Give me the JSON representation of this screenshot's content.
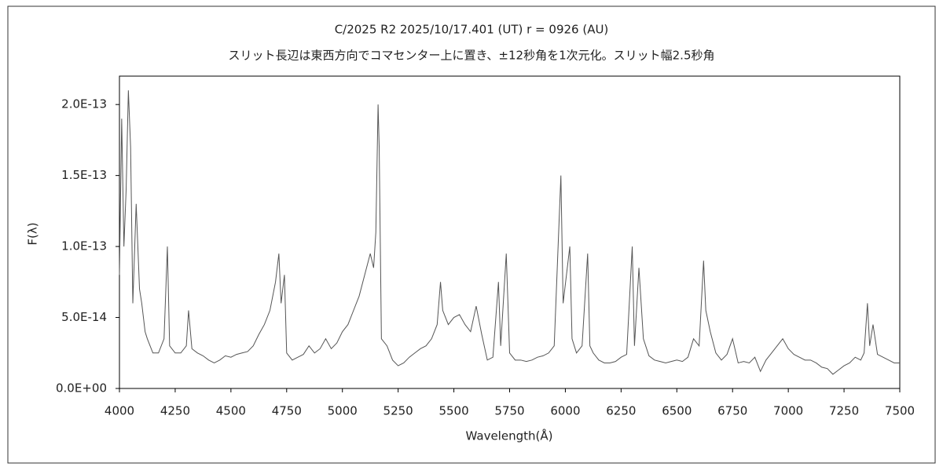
{
  "chart_data": {
    "type": "line",
    "title": "C/2025 R2    2025/10/17.401 (UT)    r = 0926 (AU)",
    "subtitle": "スリット長辺は東西方向でコマセンター上に置き、±12秒角を1次元化。スリット幅2.5秒角",
    "x_label": "Wavelength(Å)",
    "y_label": "F(λ)",
    "xlim": [
      4000,
      7500
    ],
    "ylim": [
      0,
      2.2e-13
    ],
    "xticks": [
      4000,
      4250,
      4500,
      4750,
      5000,
      5250,
      5500,
      5750,
      6000,
      6250,
      6500,
      6750,
      7000,
      7250,
      7500
    ],
    "yticks": [
      {
        "value": 0,
        "label": "0.0E+00"
      },
      {
        "value": 5e-14,
        "label": "5.0E-14"
      },
      {
        "value": 1e-13,
        "label": "1.0E-13"
      },
      {
        "value": 1.5e-13,
        "label": "1.5E-13"
      },
      {
        "value": 2e-13,
        "label": "2.0E-13"
      }
    ],
    "grid": false,
    "series": [
      {
        "color": "#555555",
        "x": [
          4000,
          4010,
          4020,
          4030,
          4040,
          4050,
          4060,
          4075,
          4090,
          4100,
          4115,
          4125,
          4150,
          4175,
          4200,
          4215,
          4225,
          4250,
          4275,
          4300,
          4310,
          4325,
          4350,
          4375,
          4400,
          4425,
          4450,
          4475,
          4500,
          4525,
          4550,
          4575,
          4600,
          4625,
          4650,
          4675,
          4700,
          4715,
          4725,
          4740,
          4750,
          4775,
          4800,
          4825,
          4850,
          4875,
          4900,
          4925,
          4950,
          4975,
          5000,
          5025,
          5050,
          5075,
          5100,
          5125,
          5140,
          5150,
          5160,
          5165,
          5175,
          5200,
          5225,
          5250,
          5275,
          5300,
          5325,
          5350,
          5375,
          5400,
          5425,
          5440,
          5450,
          5475,
          5500,
          5525,
          5550,
          5575,
          5600,
          5625,
          5650,
          5675,
          5700,
          5710,
          5735,
          5750,
          5775,
          5800,
          5825,
          5850,
          5875,
          5900,
          5925,
          5950,
          5980,
          5990,
          6020,
          6030,
          6050,
          6075,
          6100,
          6110,
          6125,
          6150,
          6175,
          6200,
          6225,
          6250,
          6275,
          6300,
          6310,
          6330,
          6350,
          6375,
          6400,
          6425,
          6450,
          6475,
          6500,
          6525,
          6550,
          6575,
          6600,
          6620,
          6630,
          6650,
          6675,
          6700,
          6725,
          6750,
          6775,
          6800,
          6825,
          6850,
          6875,
          6900,
          6925,
          6950,
          6975,
          7000,
          7025,
          7050,
          7075,
          7100,
          7125,
          7150,
          7175,
          7200,
          7225,
          7250,
          7275,
          7300,
          7325,
          7340,
          7355,
          7365,
          7380,
          7400,
          7425,
          7450,
          7475,
          7500
        ],
        "values": [
          8e-14,
          1.9e-13,
          1e-13,
          1.4e-13,
          2.1e-13,
          1.7e-13,
          6e-14,
          1.3e-13,
          7e-14,
          6e-14,
          4e-14,
          3.5e-14,
          2.5e-14,
          2.5e-14,
          3.5e-14,
          1e-13,
          3e-14,
          2.5e-14,
          2.5e-14,
          3e-14,
          5.5e-14,
          2.8e-14,
          2.5e-14,
          2.3e-14,
          2e-14,
          1.8e-14,
          2e-14,
          2.3e-14,
          2.2e-14,
          2.4e-14,
          2.5e-14,
          2.6e-14,
          3e-14,
          3.8e-14,
          4.5e-14,
          5.5e-14,
          7.5e-14,
          9.5e-14,
          6e-14,
          8e-14,
          2.5e-14,
          2e-14,
          2.2e-14,
          2.4e-14,
          3e-14,
          2.5e-14,
          2.8e-14,
          3.5e-14,
          2.8e-14,
          3.2e-14,
          4e-14,
          4.5e-14,
          5.5e-14,
          6.5e-14,
          8e-14,
          9.5e-14,
          8.5e-14,
          1.1e-13,
          2e-13,
          1.7e-13,
          3.5e-14,
          3e-14,
          2e-14,
          1.6e-14,
          1.8e-14,
          2.2e-14,
          2.5e-14,
          2.8e-14,
          3e-14,
          3.5e-14,
          4.5e-14,
          7.5e-14,
          5.5e-14,
          4.5e-14,
          5e-14,
          5.2e-14,
          4.5e-14,
          4e-14,
          5.8e-14,
          3.8e-14,
          2e-14,
          2.2e-14,
          7.5e-14,
          3e-14,
          9.5e-14,
          2.5e-14,
          2e-14,
          2e-14,
          1.9e-14,
          2e-14,
          2.2e-14,
          2.3e-14,
          2.5e-14,
          3e-14,
          1.5e-13,
          6e-14,
          1e-13,
          3.5e-14,
          2.5e-14,
          3e-14,
          9.5e-14,
          3e-14,
          2.5e-14,
          2e-14,
          1.8e-14,
          1.8e-14,
          1.9e-14,
          2.2e-14,
          2.4e-14,
          1e-13,
          3e-14,
          8.5e-14,
          3.5e-14,
          2.3e-14,
          2e-14,
          1.9e-14,
          1.8e-14,
          1.9e-14,
          2e-14,
          1.9e-14,
          2.2e-14,
          3.5e-14,
          3e-14,
          9e-14,
          5.5e-14,
          4e-14,
          2.5e-14,
          2e-14,
          2.4e-14,
          3.5e-14,
          1.8e-14,
          1.9e-14,
          1.8e-14,
          2.2e-14,
          1.2e-14,
          2e-14,
          2.5e-14,
          3e-14,
          3.5e-14,
          2.8e-14,
          2.4e-14,
          2.2e-14,
          2e-14,
          2e-14,
          1.8e-14,
          1.5e-14,
          1.4e-14,
          1e-14,
          1.3e-14,
          1.6e-14,
          1.8e-14,
          2.2e-14,
          2e-14,
          2.5e-14,
          6e-14,
          3e-14,
          4.5e-14,
          2.4e-14,
          2.2e-14,
          2e-14,
          1.8e-14,
          1.8e-14
        ]
      }
    ]
  }
}
